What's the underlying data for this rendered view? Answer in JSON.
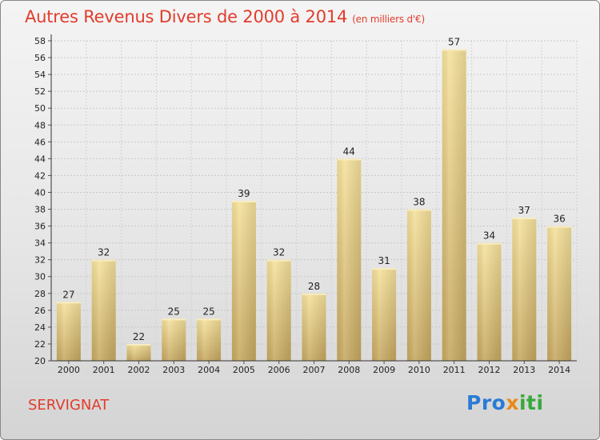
{
  "header": {
    "title": "Autres Revenus Divers de 2000 à 2014",
    "unit": "(en milliers d'€)"
  },
  "footer": {
    "place": "SERVIGNAT",
    "logo": "Proxiti"
  },
  "colors": {
    "title": "#e23c2c",
    "bar_light": "#f5e09a",
    "bar_dark": "#c8aa62"
  },
  "chart_data": {
    "type": "bar",
    "title": "Autres Revenus Divers de 2000 à 2014",
    "subtitle": "(en milliers d'€)",
    "xlabel": "",
    "ylabel": "",
    "categories": [
      "2000",
      "2001",
      "2002",
      "2003",
      "2004",
      "2005",
      "2006",
      "2007",
      "2008",
      "2009",
      "2010",
      "2011",
      "2012",
      "2013",
      "2014"
    ],
    "values": [
      27,
      32,
      22,
      25,
      25,
      39,
      32,
      28,
      44,
      31,
      38,
      57,
      34,
      37,
      36
    ],
    "ylim": [
      20,
      58
    ],
    "yticks": [
      20,
      22,
      24,
      26,
      28,
      30,
      32,
      34,
      36,
      38,
      40,
      42,
      44,
      46,
      48,
      50,
      52,
      54,
      56,
      58
    ],
    "grid": true
  }
}
